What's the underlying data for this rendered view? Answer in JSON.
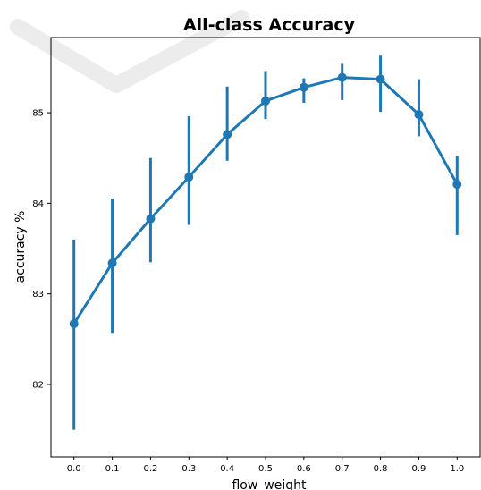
{
  "chart_data": {
    "type": "line",
    "title": "All-class Accuracy",
    "xlabel": "flow_weight",
    "ylabel": "accuracy %",
    "x": [
      0.0,
      0.1,
      0.2,
      0.3,
      0.4,
      0.5,
      0.6,
      0.7,
      0.8,
      0.9,
      1.0
    ],
    "x_tick_labels": [
      "0.0",
      "0.1",
      "0.2",
      "0.3",
      "0.4",
      "0.5",
      "0.6",
      "0.7",
      "0.8",
      "0.9",
      "1.0"
    ],
    "y_ticks": [
      82,
      83,
      84,
      85
    ],
    "series": [
      {
        "values": [
          82.67,
          83.34,
          83.83,
          84.29,
          84.76,
          85.13,
          85.28,
          85.39,
          85.37,
          84.98,
          84.21
        ],
        "err_low": [
          81.5,
          82.57,
          83.35,
          83.76,
          84.47,
          84.93,
          85.11,
          85.14,
          85.01,
          84.74,
          83.65
        ],
        "err_high": [
          83.6,
          84.05,
          84.5,
          84.96,
          85.29,
          85.46,
          85.38,
          85.54,
          85.63,
          85.37,
          84.52
        ]
      }
    ],
    "xlim": [
      -0.06,
      1.06
    ],
    "ylim": [
      81.2,
      85.83
    ],
    "colors": {
      "series": "#1f77b4"
    },
    "grid": false
  }
}
